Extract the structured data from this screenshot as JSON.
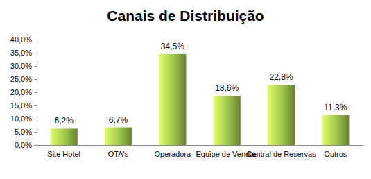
{
  "chart_data": {
    "type": "bar",
    "title": "Canais de Distribuição",
    "categories": [
      "Site Hotel",
      "OTA's",
      "Operadora",
      "Equipe de Vendas",
      "Central de Reservas",
      "Outros"
    ],
    "values": [
      6.2,
      6.7,
      34.5,
      18.6,
      22.8,
      11.3
    ],
    "value_labels": [
      "6,2%",
      "6,7%",
      "34,5%",
      "18,6%",
      "22,8%",
      "11,3%"
    ],
    "color": "#7f9f3c",
    "ylim": [
      0,
      40
    ],
    "yticks": [
      {
        "value": 0,
        "label": "0,0%"
      },
      {
        "value": 5,
        "label": "5,0%"
      },
      {
        "value": 10,
        "label": "10,0%"
      },
      {
        "value": 15,
        "label": "15,0%"
      },
      {
        "value": 20,
        "label": "20,0%"
      },
      {
        "value": 25,
        "label": "25,0%"
      },
      {
        "value": 30,
        "label": "30,0%"
      },
      {
        "value": 35,
        "label": "35,0%"
      },
      {
        "value": 40,
        "label": "40,0%"
      }
    ],
    "grid": false,
    "data_labels": true
  }
}
